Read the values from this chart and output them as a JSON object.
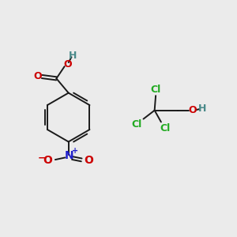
{
  "background_color": "#ebebeb",
  "bond_color": "#1a1a1a",
  "colors": {
    "O": "#cc0000",
    "N": "#2020cc",
    "Cl": "#22aa22",
    "H": "#4a8a8a",
    "C": "#1a1a1a"
  },
  "figsize": [
    3.0,
    3.0
  ],
  "dpi": 100
}
